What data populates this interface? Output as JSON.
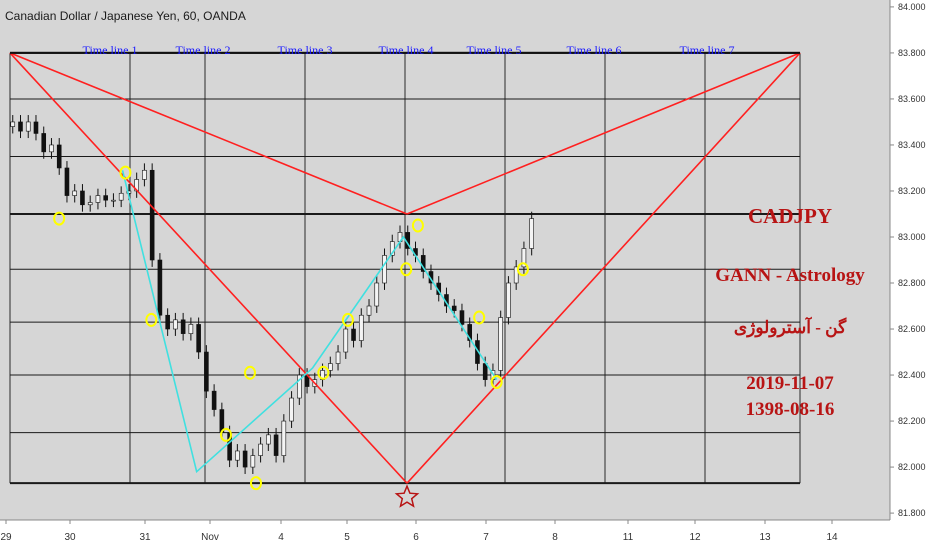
{
  "title": "Canadian Dollar / Japanese Yen, 60, OANDA",
  "colors": {
    "background": "#d6d6d6",
    "red_lines": "#ff2020",
    "swing_line": "#40e0e0",
    "markers": "#ffff00",
    "timeline_text": "#1a1aff",
    "annotation_text": "#b81414",
    "candle_up": "#f4f4f4",
    "candle_down": "#111111"
  },
  "chart_data": {
    "type": "line",
    "symbol": "CADJPY",
    "interval": "60",
    "source": "OANDA",
    "y_ticks": [
      "84.000",
      "83.800",
      "83.600",
      "83.400",
      "83.200",
      "83.000",
      "82.800",
      "82.600",
      "82.400",
      "82.200",
      "82.000",
      "81.800"
    ],
    "ylim": [
      81.77,
      84.03
    ],
    "x_ticks": [
      "29",
      "30",
      "31",
      "Nov",
      "4",
      "5",
      "6",
      "7",
      "8",
      "11",
      "12",
      "13",
      "14"
    ],
    "timeline_labels": [
      "Time line 1",
      "Time line 2",
      "Time line 3",
      "Time line 4",
      "Time line 5",
      "Time line 6",
      "Time line 7"
    ],
    "horizontal_levels": [
      83.8,
      83.6,
      83.35,
      83.1,
      82.86,
      82.63,
      82.4,
      82.15,
      81.93
    ],
    "bold_levels": [
      83.8,
      83.1,
      81.93
    ],
    "gann_fan": {
      "top_left": 83.8,
      "top_right": 83.8,
      "apex_mid": 83.1,
      "apex_bottom": 81.93
    },
    "swing_points": [
      {
        "x": "Oct 30 18:00",
        "y": 83.29
      },
      {
        "x": "Oct 31 20:00",
        "y": 81.98
      },
      {
        "x": "Nov 04 12:00",
        "y": 82.43
      },
      {
        "x": "Nov 05 20:00",
        "y": 83.0
      },
      {
        "x": "Nov 07 04:00",
        "y": 82.38
      }
    ],
    "marker_points": [
      {
        "x": "Oct 29 20:00",
        "y": 83.08
      },
      {
        "x": "Oct 30 19:00",
        "y": 83.28
      },
      {
        "x": "Oct 31 04:00",
        "y": 82.64
      },
      {
        "x": "Nov 01 06:00",
        "y": 82.14
      },
      {
        "x": "Nov 01 14:00",
        "y": 82.41
      },
      {
        "x": "Nov 01 16:00",
        "y": 81.93
      },
      {
        "x": "Nov 04 16:00",
        "y": 82.41
      },
      {
        "x": "Nov 05 01:00",
        "y": 82.64
      },
      {
        "x": "Nov 05 21:00",
        "y": 82.86
      },
      {
        "x": "Nov 06 01:00",
        "y": 83.05
      },
      {
        "x": "Nov 06 22:00",
        "y": 82.65
      },
      {
        "x": "Nov 07 04:00",
        "y": 82.37
      },
      {
        "x": "Nov 07 13:00",
        "y": 82.86
      }
    ],
    "series": [
      {
        "values": [
          83.48,
          83.5,
          83.46,
          83.5,
          83.45,
          83.37,
          83.4,
          83.3,
          83.18,
          83.2,
          83.14,
          83.15,
          83.18,
          83.16,
          83.16,
          83.19,
          83.2,
          83.25,
          83.29,
          82.9,
          82.66,
          82.6,
          82.64,
          82.58,
          82.62,
          82.5,
          82.33,
          82.25,
          82.15,
          82.03,
          82.07,
          82.0,
          82.05,
          82.1,
          82.14,
          82.05,
          82.2,
          82.3,
          82.4,
          82.35,
          82.38,
          82.42,
          82.45,
          82.5,
          82.6,
          82.55,
          82.66,
          82.7,
          82.8,
          82.92,
          82.98,
          83.02,
          82.95,
          82.92,
          82.85,
          82.8,
          82.75,
          82.7,
          82.68,
          82.62,
          82.55,
          82.45,
          82.38,
          82.42,
          82.65,
          82.8,
          82.87,
          82.95,
          83.08
        ],
        "x_range": [
          "Oct 29 00:00",
          "Nov 07 16:00"
        ]
      }
    ],
    "xlabel": "",
    "ylabel": ""
  },
  "annotations": {
    "symbol": "CADJPY",
    "method": "GANN - Astrology",
    "persian_title": "گن - آسترولوژی",
    "date_gregorian": "2019-11-07",
    "date_solar": "1398-08-16"
  }
}
